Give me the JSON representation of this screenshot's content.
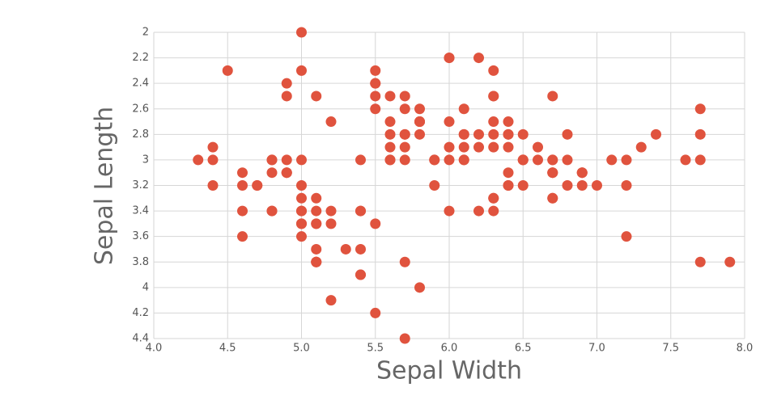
{
  "chart_data": {
    "type": "scatter",
    "x_label": "Sepal Width",
    "y_label": "Sepal Length",
    "color": "#e0533e",
    "grid": true,
    "y_inverted": true,
    "xlim": [
      4.0,
      8.0
    ],
    "xticks": [
      {
        "value": 4.0,
        "label": "4.0"
      },
      {
        "value": 4.5,
        "label": "4.5"
      },
      {
        "value": 5.0,
        "label": "5.0"
      },
      {
        "value": 5.5,
        "label": "5.5"
      },
      {
        "value": 6.0,
        "label": "6.0"
      },
      {
        "value": 6.5,
        "label": "6.5"
      },
      {
        "value": 7.0,
        "label": "7.0"
      },
      {
        "value": 7.5,
        "label": "7.5"
      },
      {
        "value": 8.0,
        "label": "8.0"
      }
    ],
    "ylim": [
      2,
      4.4
    ],
    "yticks": [
      2,
      2.2,
      2.4,
      2.6,
      2.8,
      3,
      3.2,
      3.4,
      3.6,
      3.8,
      4,
      4.2,
      4.4
    ],
    "x": [
      5.1,
      4.9,
      4.7,
      4.6,
      5.0,
      5.4,
      4.6,
      5.0,
      4.4,
      4.9,
      5.4,
      4.8,
      4.8,
      4.3,
      5.8,
      5.7,
      5.4,
      5.1,
      5.7,
      5.1,
      5.4,
      5.1,
      4.6,
      5.1,
      4.8,
      5.0,
      5.0,
      5.2,
      5.2,
      4.7,
      4.8,
      5.4,
      5.2,
      5.5,
      4.9,
      5.0,
      5.5,
      4.9,
      4.4,
      5.1,
      5.0,
      4.5,
      4.4,
      5.0,
      5.1,
      4.8,
      5.1,
      4.6,
      5.3,
      5.0,
      7.0,
      6.4,
      6.9,
      5.5,
      6.5,
      5.7,
      6.3,
      4.9,
      6.6,
      5.2,
      5.0,
      5.9,
      6.0,
      6.1,
      5.6,
      6.7,
      5.6,
      5.8,
      6.2,
      5.6,
      5.9,
      6.1,
      6.3,
      6.1,
      6.4,
      6.6,
      6.8,
      6.7,
      6.0,
      5.7,
      5.5,
      5.5,
      5.8,
      6.0,
      5.4,
      6.0,
      6.7,
      6.3,
      5.6,
      5.5,
      5.5,
      6.1,
      5.8,
      5.0,
      5.6,
      5.7,
      5.7,
      6.2,
      5.1,
      5.7,
      6.3,
      5.8,
      7.1,
      6.3,
      6.5,
      7.6,
      4.9,
      7.3,
      6.7,
      7.2,
      6.5,
      6.4,
      6.8,
      5.7,
      5.8,
      6.4,
      6.5,
      7.7,
      7.7,
      6.0,
      6.9,
      5.6,
      7.7,
      6.3,
      6.7,
      7.2,
      6.2,
      6.1,
      6.4,
      7.2,
      7.4,
      7.9,
      6.4,
      6.3,
      6.1,
      7.7,
      6.3,
      6.4,
      6.0,
      6.9,
      6.7,
      6.9,
      5.8,
      6.8,
      6.7,
      6.7,
      6.3,
      6.5,
      6.2,
      5.9
    ],
    "values": [
      3.5,
      3.0,
      3.2,
      3.1,
      3.6,
      3.9,
      3.4,
      3.4,
      2.9,
      3.1,
      3.7,
      3.4,
      3.0,
      3.0,
      4.0,
      4.4,
      3.9,
      3.5,
      3.8,
      3.8,
      3.4,
      3.7,
      3.6,
      3.3,
      3.4,
      3.0,
      3.4,
      3.5,
      3.4,
      3.2,
      3.1,
      3.4,
      4.1,
      4.2,
      3.1,
      3.2,
      3.5,
      3.1,
      3.0,
      3.4,
      3.5,
      2.3,
      3.2,
      3.5,
      3.8,
      3.0,
      3.8,
      3.2,
      3.7,
      3.3,
      3.2,
      3.2,
      3.1,
      2.3,
      2.8,
      2.8,
      3.3,
      2.4,
      2.9,
      2.7,
      2.0,
      3.0,
      2.2,
      2.9,
      2.9,
      3.1,
      3.0,
      2.7,
      2.2,
      2.5,
      3.2,
      2.8,
      2.5,
      2.8,
      2.9,
      3.0,
      2.8,
      3.0,
      2.9,
      2.6,
      2.4,
      2.4,
      2.7,
      2.7,
      3.0,
      3.4,
      3.1,
      2.3,
      3.0,
      2.5,
      2.6,
      3.0,
      2.6,
      2.3,
      2.7,
      3.0,
      2.9,
      2.9,
      2.5,
      2.8,
      3.3,
      2.7,
      3.0,
      2.9,
      3.0,
      3.0,
      2.5,
      2.9,
      2.5,
      3.6,
      3.2,
      2.7,
      3.0,
      2.5,
      2.8,
      3.2,
      3.0,
      3.8,
      2.6,
      2.2,
      3.2,
      2.8,
      2.8,
      2.7,
      3.3,
      3.2,
      2.8,
      3.0,
      2.8,
      3.0,
      2.8,
      3.8,
      2.8,
      2.8,
      2.6,
      3.0,
      3.4,
      3.1,
      3.0,
      3.1,
      3.1,
      3.1,
      2.7,
      3.2,
      3.3,
      3.0,
      2.5,
      3.0,
      3.4,
      3.0
    ]
  }
}
